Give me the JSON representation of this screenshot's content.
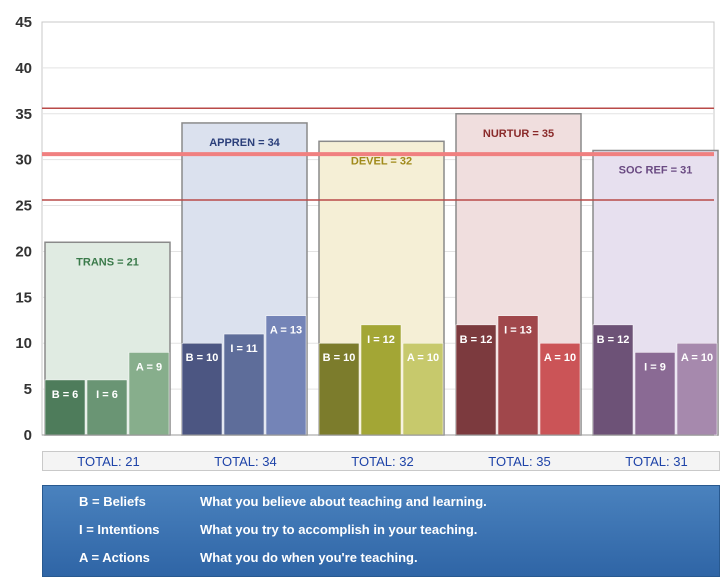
{
  "chart_data": {
    "type": "bar",
    "ylim": [
      0,
      45
    ],
    "yticks": [
      0,
      5,
      10,
      15,
      20,
      25,
      30,
      35,
      40,
      45
    ],
    "reference_lines": [
      {
        "value": 35.6,
        "color": "#b94a48",
        "style": "thin"
      },
      {
        "value": 30.6,
        "color": "#f08080",
        "style": "thick"
      },
      {
        "value": 25.6,
        "color": "#b94a48",
        "style": "thin"
      }
    ],
    "groups": [
      {
        "label": "TRANS = 21",
        "total_value": 21,
        "total_text": "TOTAL:  21",
        "fill": "#e0ebe2",
        "label_color": "#3a7a4a",
        "segments": [
          {
            "label": "B = 6",
            "value": 6,
            "color": "#4e7c5b"
          },
          {
            "label": "I = 6",
            "value": 6,
            "color": "#6a9574"
          },
          {
            "label": "A = 9",
            "value": 9,
            "color": "#87ae8c"
          }
        ]
      },
      {
        "label": "APPREN = 34",
        "total_value": 34,
        "total_text": "TOTAL:  34",
        "fill": "#dbe1ee",
        "label_color": "#2b3f7a",
        "segments": [
          {
            "label": "B = 10",
            "value": 10,
            "color": "#4c5682"
          },
          {
            "label": "I = 11",
            "value": 11,
            "color": "#5e6d9a"
          },
          {
            "label": "A = 13",
            "value": 13,
            "color": "#7484b7"
          }
        ]
      },
      {
        "label": "DEVEL = 32",
        "total_value": 32,
        "total_text": "TOTAL:  32",
        "fill": "#f5efd6",
        "label_color": "#a08a1a",
        "segments": [
          {
            "label": "B = 10",
            "value": 10,
            "color": "#7c7c2c"
          },
          {
            "label": "I = 12",
            "value": 12,
            "color": "#a3a635"
          },
          {
            "label": "A = 10",
            "value": 10,
            "color": "#c7c96c"
          }
        ]
      },
      {
        "label": "NURTUR = 35",
        "total_value": 35,
        "total_text": "TOTAL:  35",
        "fill": "#f0dede",
        "label_color": "#8a2a2a",
        "segments": [
          {
            "label": "B = 12",
            "value": 12,
            "color": "#7c3a3e"
          },
          {
            "label": "I = 13",
            "value": 13,
            "color": "#a0474b"
          },
          {
            "label": "A = 10",
            "value": 10,
            "color": "#cb5457"
          }
        ]
      },
      {
        "label": "SOC REF = 31",
        "total_value": 31,
        "total_text": "TOTAL:  31",
        "fill": "#e7e0ef",
        "label_color": "#6a4a82",
        "segments": [
          {
            "label": "B = 12",
            "value": 12,
            "color": "#6d5277"
          },
          {
            "label": "I = 9",
            "value": 9,
            "color": "#8a6a94"
          },
          {
            "label": "A = 10",
            "value": 10,
            "color": "#a689ad"
          }
        ]
      }
    ]
  },
  "legend": [
    {
      "term": "B = Beliefs",
      "description": "What you believe about teaching and learning."
    },
    {
      "term": "I = Intentions",
      "description": "What you try to accomplish in your teaching."
    },
    {
      "term": "A = Actions",
      "description": "What you do when you're teaching."
    }
  ]
}
